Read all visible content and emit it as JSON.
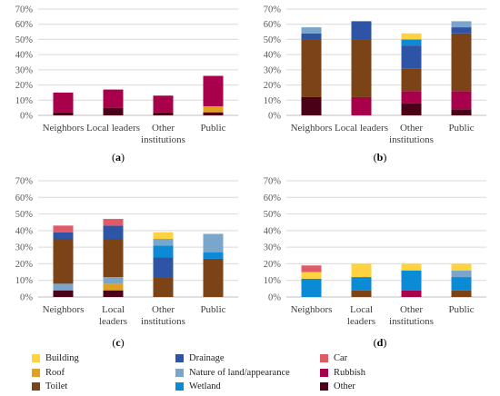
{
  "series_info": [
    {
      "key": "Building",
      "name": "Building",
      "color": "#FFD23F"
    },
    {
      "key": "Drainage",
      "name": "Drainage",
      "color": "#2E55A5"
    },
    {
      "key": "Car",
      "name": "Car",
      "color": "#E05A67"
    },
    {
      "key": "Roof",
      "name": "Roof",
      "color": "#E0A020"
    },
    {
      "key": "Nature",
      "name": "Nature of land/appearance",
      "color": "#7BA6CC"
    },
    {
      "key": "Rubbish",
      "name": "Rubbish",
      "color": "#A8004A"
    },
    {
      "key": "Toilet",
      "name": "Toilet",
      "color": "#7B4316"
    },
    {
      "key": "Wetland",
      "name": "Wetland",
      "color": "#0B8AD6"
    },
    {
      "key": "Other",
      "name": "Other",
      "color": "#4A0016"
    }
  ],
  "chart_data": [
    {
      "type": "bar",
      "stacked": true,
      "panel_label": "(a)",
      "categories": [
        [
          "Neighbors"
        ],
        [
          "Local leaders"
        ],
        [
          "Other",
          "institutions"
        ],
        [
          "Public"
        ]
      ],
      "yticks": [
        "0%",
        "10%",
        "20%",
        "30%",
        "40%",
        "50%",
        "60%",
        "70%"
      ],
      "ylim": [
        0,
        70
      ],
      "grid": true,
      "series": [
        {
          "key": "Other",
          "values": [
            2,
            5,
            2,
            2
          ]
        },
        {
          "key": "Roof",
          "values": [
            0,
            0,
            0,
            4
          ]
        },
        {
          "key": "Rubbish",
          "values": [
            13,
            12,
            11,
            20
          ]
        }
      ]
    },
    {
      "type": "bar",
      "stacked": true,
      "panel_label": "(b)",
      "categories": [
        [
          "Neighbors"
        ],
        [
          "Local leaders"
        ],
        [
          "Other",
          "institutions"
        ],
        [
          "Public"
        ]
      ],
      "yticks": [
        "0%",
        "10%",
        "20%",
        "30%",
        "40%",
        "50%",
        "60%",
        "70%"
      ],
      "ylim": [
        0,
        70
      ],
      "grid": true,
      "series": [
        {
          "key": "Other",
          "values": [
            12,
            0,
            8,
            4
          ]
        },
        {
          "key": "Rubbish",
          "values": [
            0,
            12,
            8,
            12
          ]
        },
        {
          "key": "Toilet",
          "values": [
            38,
            38,
            15,
            38
          ]
        },
        {
          "key": "Drainage",
          "values": [
            4,
            12,
            15,
            4
          ]
        },
        {
          "key": "Wetland",
          "values": [
            0,
            0,
            4,
            0
          ]
        },
        {
          "key": "Nature",
          "values": [
            4,
            0,
            0,
            4
          ]
        },
        {
          "key": "Building",
          "values": [
            0,
            0,
            4,
            0
          ]
        }
      ]
    },
    {
      "type": "bar",
      "stacked": true,
      "panel_label": "(c)",
      "categories": [
        [
          "Neighbors"
        ],
        [
          "Local",
          "leaders"
        ],
        [
          "Other",
          "institutions"
        ],
        [
          "Public"
        ]
      ],
      "yticks": [
        "0%",
        "10%",
        "20%",
        "30%",
        "40%",
        "50%",
        "60%",
        "70%"
      ],
      "ylim": [
        0,
        70
      ],
      "grid": true,
      "series": [
        {
          "key": "Other",
          "values": [
            4,
            4,
            0,
            0
          ]
        },
        {
          "key": "Roof",
          "values": [
            0,
            4,
            0,
            0
          ]
        },
        {
          "key": "Nature",
          "values": [
            4,
            4,
            0,
            0
          ]
        },
        {
          "key": "Toilet",
          "values": [
            27,
            23,
            12,
            23
          ]
        },
        {
          "key": "Drainage",
          "values": [
            4,
            8,
            12,
            0
          ]
        },
        {
          "key": "Wetland",
          "values": [
            0,
            0,
            7,
            4
          ]
        },
        {
          "key": "Nature",
          "values": [
            0,
            0,
            4,
            11
          ]
        },
        {
          "key": "Car",
          "values": [
            4,
            4,
            0,
            0
          ]
        },
        {
          "key": "Building",
          "values": [
            0,
            0,
            4,
            0
          ]
        }
      ]
    },
    {
      "type": "bar",
      "stacked": true,
      "panel_label": "(d)",
      "categories": [
        [
          "Neighbors"
        ],
        [
          "Local",
          "leaders"
        ],
        [
          "Other",
          "institutions"
        ],
        [
          "Public"
        ]
      ],
      "yticks": [
        "0%",
        "10%",
        "20%",
        "30%",
        "40%",
        "50%",
        "60%",
        "70%"
      ],
      "ylim": [
        0,
        70
      ],
      "grid": true,
      "series": [
        {
          "key": "Toilet",
          "values": [
            0,
            4,
            0,
            4
          ]
        },
        {
          "key": "Rubbish",
          "values": [
            0,
            0,
            4,
            0
          ]
        },
        {
          "key": "Wetland",
          "values": [
            11,
            8,
            12,
            8
          ]
        },
        {
          "key": "Nature",
          "values": [
            0,
            0,
            0,
            4
          ]
        },
        {
          "key": "Building",
          "values": [
            4,
            8,
            4,
            4
          ]
        },
        {
          "key": "Car",
          "values": [
            4,
            0,
            0,
            0
          ]
        }
      ]
    }
  ]
}
